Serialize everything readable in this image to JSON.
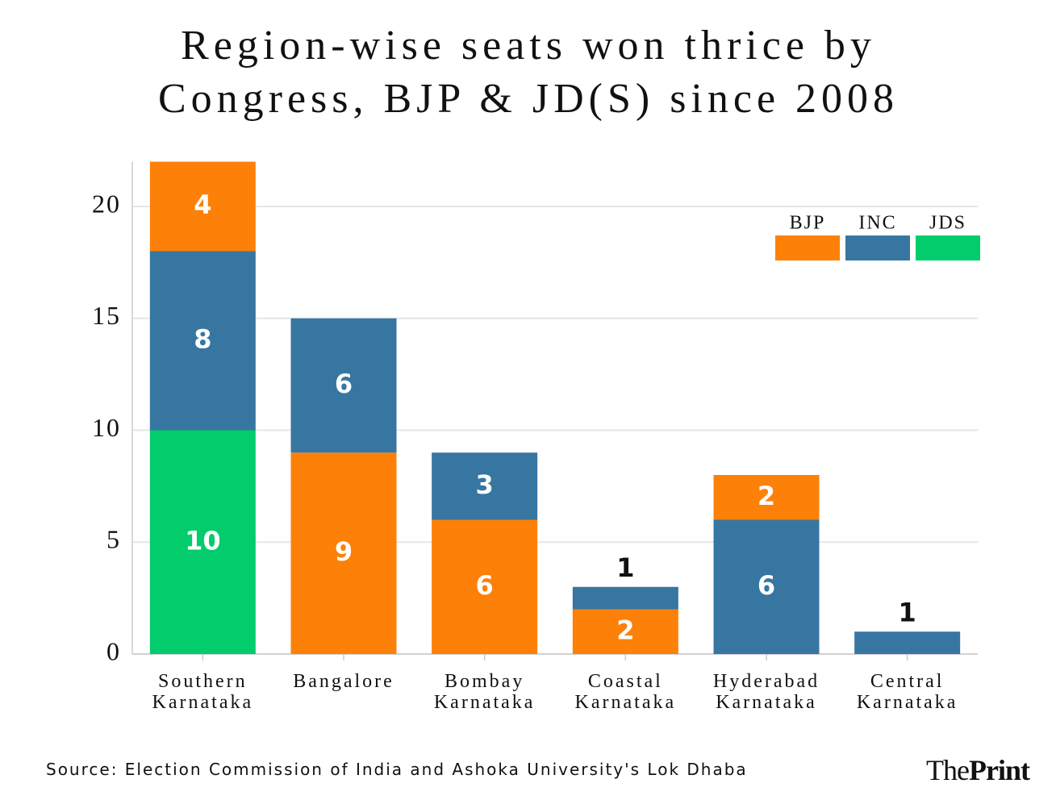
{
  "chart_data": {
    "type": "stacked-bar",
    "title": "Region-wise seats won thrice by Congress, BJP & JD(S) since 2008",
    "categories": [
      "Southern Karnataka",
      "Bangalore",
      "Bombay Karnataka",
      "Coastal Karnataka",
      "Hyderabad Karnataka",
      "Central Karnataka"
    ],
    "series": [
      {
        "name": "BJP",
        "color": "#fd8008",
        "values": [
          4,
          9,
          6,
          2,
          2,
          null
        ]
      },
      {
        "name": "INC",
        "color": "#3776a1",
        "values": [
          8,
          6,
          3,
          1,
          6,
          1
        ]
      },
      {
        "name": "JDS",
        "color": "#02cc6b",
        "values": [
          10,
          null,
          null,
          null,
          null,
          null
        ]
      }
    ],
    "ylim": [
      0,
      22
    ],
    "yticks": [
      0,
      5,
      10,
      15,
      20
    ],
    "grid": true,
    "legend": "upper right",
    "source": "Source: Election Commission of India and Ashoka University's Lok Dhaba",
    "logo": [
      "The",
      "Print"
    ]
  }
}
